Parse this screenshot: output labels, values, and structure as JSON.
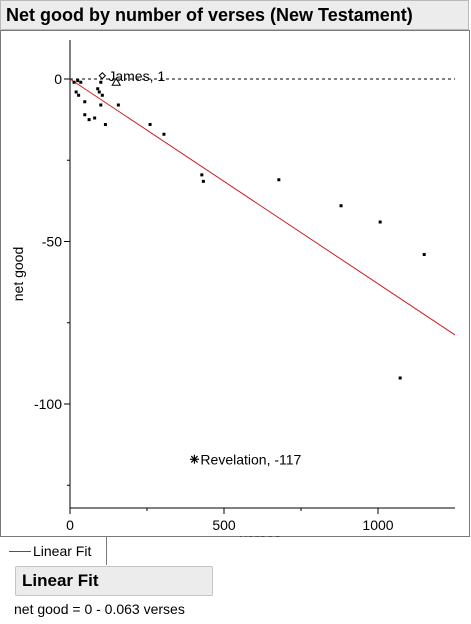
{
  "header": {
    "title": "Net good by number of verses (New Testament)"
  },
  "chart_data": {
    "type": "scatter",
    "title": "Net good by number of verses (New Testament)",
    "xlabel": "verses",
    "ylabel": "net good",
    "xlim": [
      0,
      1250
    ],
    "ylim": [
      -132,
      12
    ],
    "xticks": [
      0,
      500,
      1000
    ],
    "yticks": [
      0,
      -50,
      -100
    ],
    "zero_line": true,
    "points": [
      {
        "x": 13,
        "y": -1
      },
      {
        "x": 20,
        "y": -4
      },
      {
        "x": 25,
        "y": -0.5
      },
      {
        "x": 28,
        "y": -5
      },
      {
        "x": 35,
        "y": -1
      },
      {
        "x": 48,
        "y": -7
      },
      {
        "x": 48,
        "y": -11
      },
      {
        "x": 62,
        "y": -12.5
      },
      {
        "x": 80,
        "y": -12
      },
      {
        "x": 90,
        "y": -3
      },
      {
        "x": 95,
        "y": -4
      },
      {
        "x": 100,
        "y": -8
      },
      {
        "x": 100,
        "y": -1
      },
      {
        "x": 105,
        "y": -5
      },
      {
        "x": 115,
        "y": -14
      },
      {
        "x": 157,
        "y": -8
      },
      {
        "x": 260,
        "y": -14
      },
      {
        "x": 305,
        "y": -17
      },
      {
        "x": 428,
        "y": -29.5
      },
      {
        "x": 433,
        "y": -31.5
      },
      {
        "x": 678,
        "y": -31
      },
      {
        "x": 880,
        "y": -39
      },
      {
        "x": 1007,
        "y": -44
      },
      {
        "x": 1072,
        "y": -92
      },
      {
        "x": 1150,
        "y": -54
      }
    ],
    "labeled_points": [
      {
        "x": 105,
        "y": 1,
        "marker": "diamond",
        "label": "James, 1"
      },
      {
        "x": 150,
        "y": -1,
        "marker": "triangle",
        "label": ""
      },
      {
        "x": 404,
        "y": -117,
        "marker": "star",
        "label": "Revelation, -117"
      }
    ],
    "fit": {
      "intercept": 0,
      "slope": -0.063,
      "color": "#cc2020"
    }
  },
  "legend": {
    "label": "Linear Fit",
    "color": "#cc2020"
  },
  "fit_report": {
    "header": "Linear Fit",
    "equation": "net good = 0 - 0.063 verses"
  }
}
